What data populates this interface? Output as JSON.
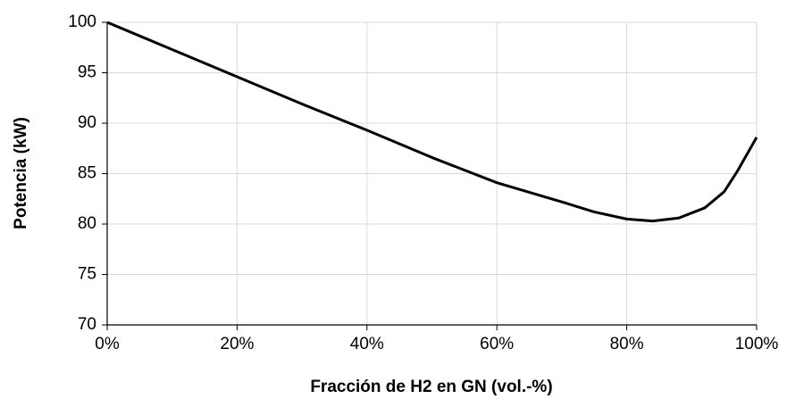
{
  "chart_data": {
    "type": "line",
    "xlabel": "Fracción de H2 en GN (vol.-%)",
    "ylabel": "Potencia (kW)",
    "x": [
      0,
      10,
      20,
      30,
      40,
      50,
      60,
      70,
      75,
      80,
      84,
      88,
      92,
      95,
      97,
      100
    ],
    "series": [
      {
        "name": "Potencia",
        "color": "#000000",
        "values": [
          100,
          97.3,
          94.6,
          91.9,
          89.3,
          86.6,
          84.1,
          82.2,
          81.2,
          80.5,
          80.3,
          80.6,
          81.6,
          83.2,
          85.2,
          88.6
        ]
      }
    ],
    "xlim": [
      0,
      100
    ],
    "xticks": [
      {
        "value": 0,
        "label": "0%"
      },
      {
        "value": 20,
        "label": "20%"
      },
      {
        "value": 40,
        "label": "40%"
      },
      {
        "value": 60,
        "label": "60%"
      },
      {
        "value": 80,
        "label": "80%"
      },
      {
        "value": 100,
        "label": "100%"
      }
    ],
    "ylim": [
      70,
      100
    ],
    "yticks": [
      70,
      75,
      80,
      85,
      90,
      95,
      100
    ],
    "grid": true
  }
}
